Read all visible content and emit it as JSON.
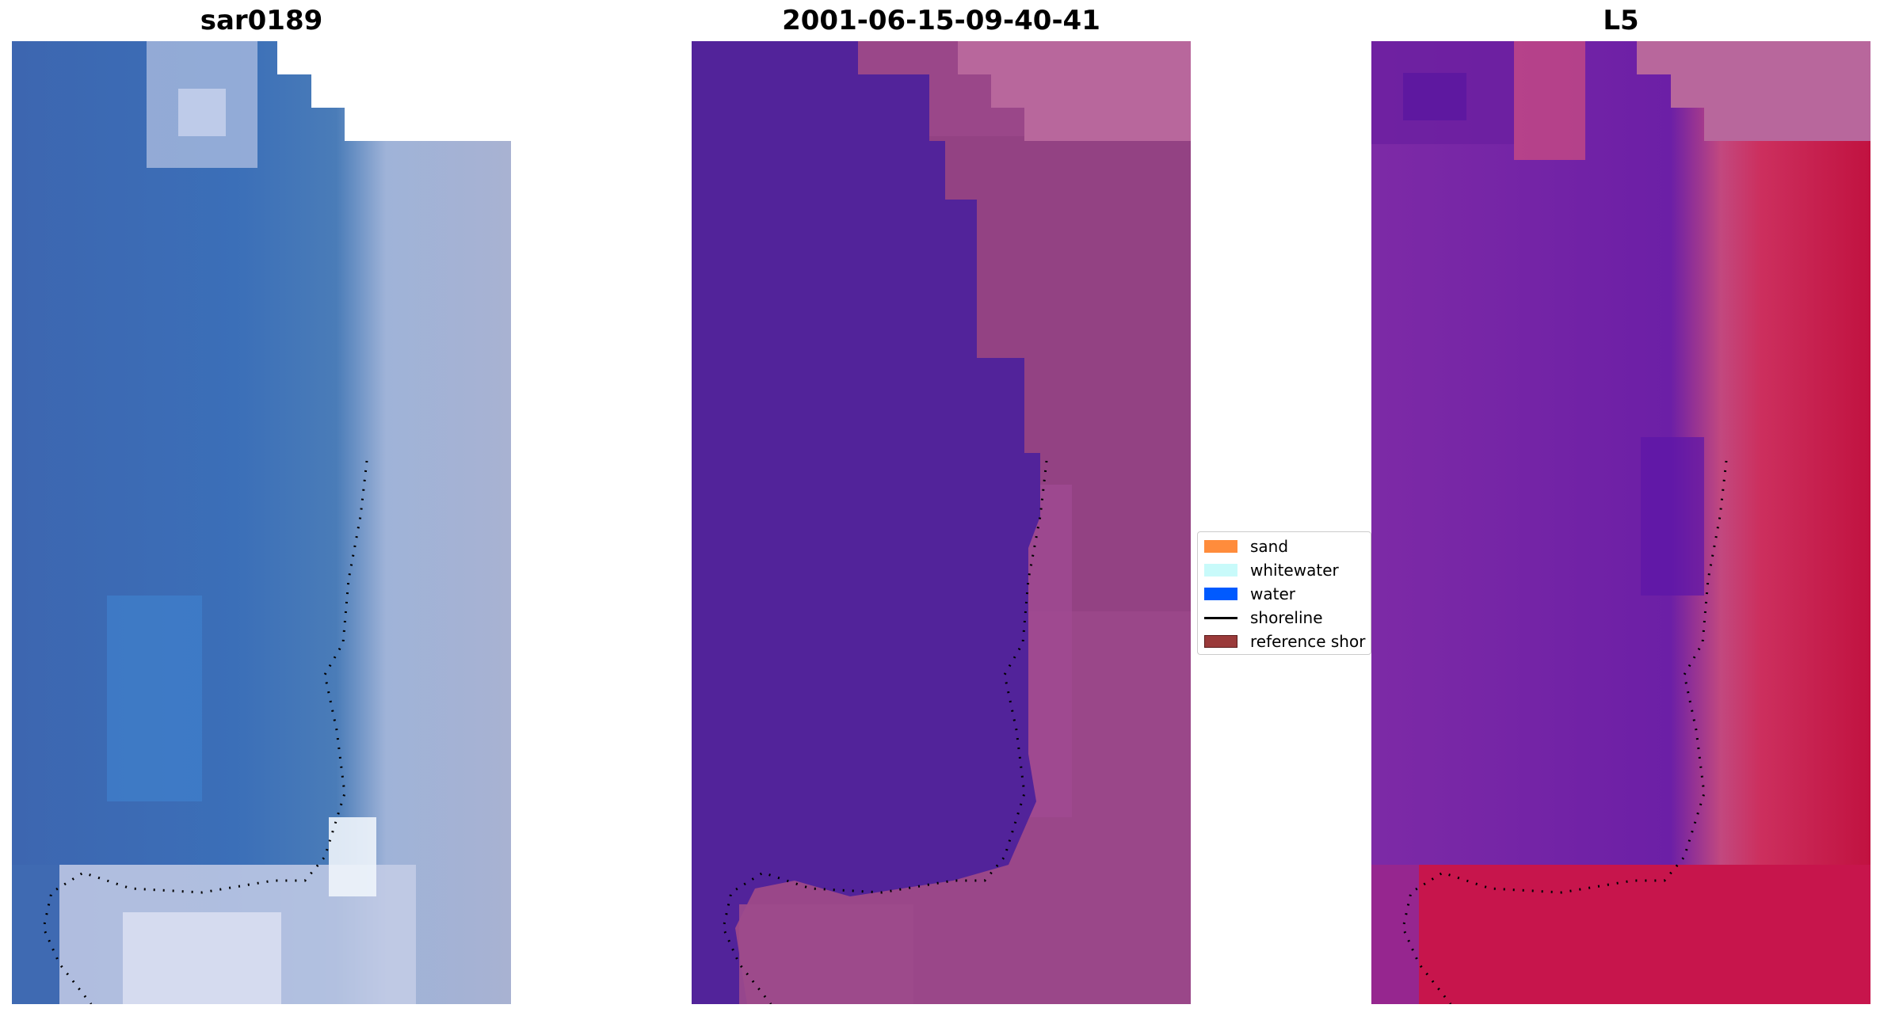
{
  "panels": [
    {
      "title": "sar0189"
    },
    {
      "title": "2001-06-15-09-40-41"
    },
    {
      "title": "L5"
    }
  ],
  "legend": {
    "items": [
      {
        "label": "sand",
        "color": "#ff8c3c",
        "kind": "patch"
      },
      {
        "label": "whitewater",
        "color": "#c8fafa",
        "kind": "patch"
      },
      {
        "label": "water",
        "color": "#005aff",
        "kind": "patch"
      },
      {
        "label": "shoreline",
        "color": "#000000",
        "kind": "line"
      },
      {
        "label": "reference shor",
        "color": "#9a3a3a",
        "kind": "patch"
      }
    ]
  },
  "colors": {
    "rgb_water": "#3a6bb5",
    "rgb_shore": "#b9c3df",
    "class_water": "#52239a",
    "class_land": "#a04a8a",
    "mndwi_water": "#7a24a8",
    "mndwi_land": "#c8174a",
    "nodata": "#b8679c"
  }
}
